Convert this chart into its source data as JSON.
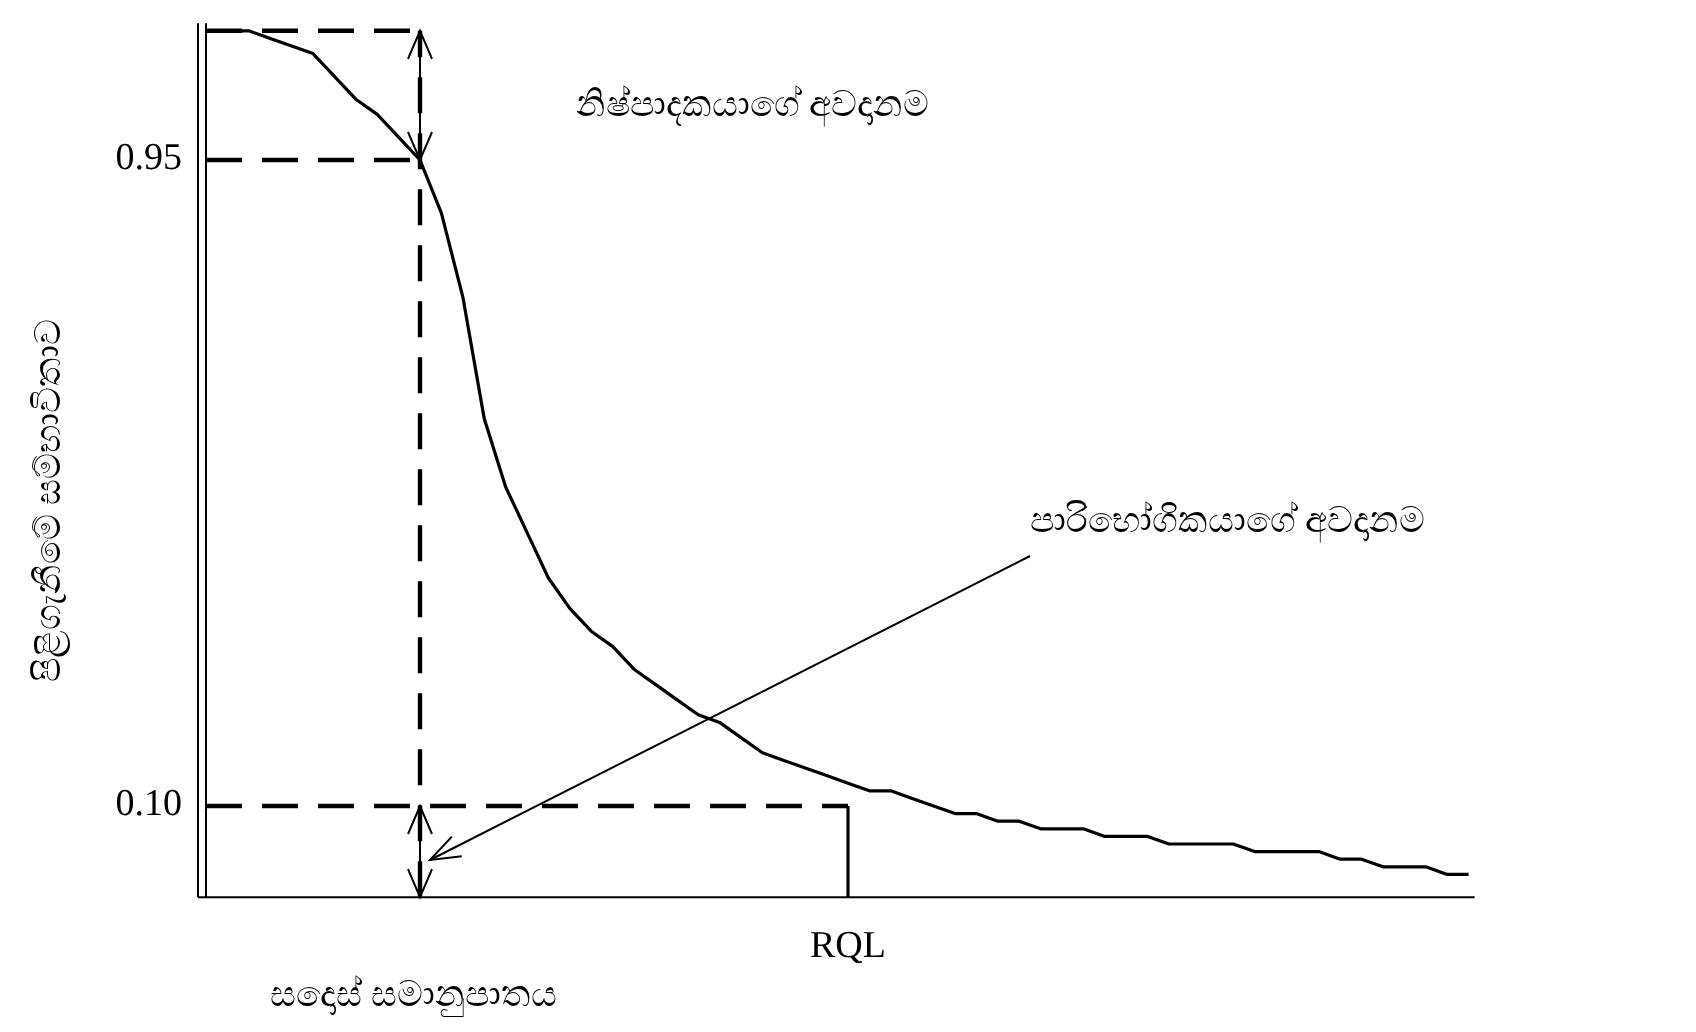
{
  "chart_data": {
    "type": "line",
    "xlabel": "සදොස් සමානුපාතය",
    "ylabel": "පිළිගැනීමේ සම්භාවිතාව",
    "annotations": [
      "නිෂ්පාදකයාගේ අවදානම",
      "පාරිභෝගිකයාගේ අවදානම"
    ],
    "categories": [
      null,
      null,
      null,
      null,
      null,
      null,
      null,
      null,
      null,
      null,
      null,
      null,
      null,
      null,
      null,
      null,
      null,
      null,
      null,
      null,
      null,
      null,
      null,
      null,
      null,
      null,
      null,
      null,
      null,
      null,
      "RQL",
      null,
      null,
      null,
      null,
      null,
      null,
      null,
      null,
      null,
      null,
      null,
      null,
      null,
      null,
      null,
      null,
      null,
      null,
      null,
      null,
      null,
      null,
      null,
      null,
      null,
      null,
      null,
      null,
      null
    ],
    "ylim": [
      -0.02,
      1.13
    ],
    "yticks": [
      {
        "value": 0.95,
        "label": "0.95"
      },
      {
        "value": 0.1,
        "label": "0.10"
      }
    ],
    "series": [
      {
        "color": "#000000",
        "line_style": "solid",
        "values": [
          1.12,
          1.12,
          1.12,
          1.11,
          1.1,
          1.09,
          1.06,
          1.03,
          1.01,
          0.98,
          0.95,
          0.88,
          0.77,
          0.61,
          0.52,
          0.46,
          0.4,
          0.36,
          0.33,
          0.31,
          0.28,
          0.26,
          0.24,
          0.22,
          0.21,
          0.19,
          0.17,
          0.16,
          0.15,
          0.14,
          0.13,
          0.12,
          0.12,
          0.11,
          0.1,
          0.09,
          0.09,
          0.08,
          0.08,
          0.07,
          0.07,
          0.07,
          0.06,
          0.06,
          0.06,
          0.05,
          0.05,
          0.05,
          0.05,
          0.04,
          0.04,
          0.04,
          0.04,
          0.03,
          0.03,
          0.02,
          0.02,
          0.02,
          0.01,
          0.01
        ]
      },
      {
        "color": "#000000",
        "line_style": "dashed",
        "values": [
          1.12,
          1.12,
          1.12,
          1.12,
          1.12,
          1.12,
          1.12,
          1.12,
          1.12,
          1.12,
          1.12,
          null,
          null,
          null,
          null,
          null,
          null,
          null,
          null,
          null,
          null,
          null,
          null,
          null,
          null,
          null,
          null,
          null,
          null,
          null,
          null,
          null,
          null,
          null,
          null,
          null,
          null,
          null,
          null,
          null,
          null,
          null,
          null,
          null,
          null,
          null,
          null,
          null,
          null,
          null,
          null,
          null,
          null,
          null,
          null,
          null,
          null,
          null,
          null,
          null
        ]
      },
      {
        "color": "#000000",
        "line_style": "dashed",
        "values": [
          0.95,
          0.95,
          0.95,
          0.95,
          0.95,
          0.95,
          0.95,
          0.95,
          0.95,
          0.95,
          0.95,
          null,
          null,
          null,
          null,
          null,
          null,
          null,
          null,
          null,
          null,
          null,
          null,
          null,
          null,
          null,
          null,
          null,
          null,
          null,
          null,
          null,
          null,
          null,
          null,
          null,
          null,
          null,
          null,
          null,
          null,
          null,
          null,
          null,
          null,
          null,
          null,
          null,
          null,
          null,
          null,
          null,
          null,
          null,
          null,
          null,
          null,
          null,
          null,
          null
        ]
      },
      {
        "color": "#000000",
        "line_style": "dashed",
        "values": [
          0.1,
          0.1,
          0.1,
          0.1,
          0.1,
          0.1,
          0.1,
          0.1,
          0.1,
          0.1,
          0.1,
          0.1,
          0.1,
          0.1,
          0.1,
          0.1,
          0.1,
          0.1,
          0.1,
          0.1,
          0.1,
          0.1,
          0.1,
          0.1,
          0.1,
          0.1,
          0.1,
          0.1,
          0.1,
          0.1,
          0.1,
          null,
          null,
          null,
          null,
          null,
          null,
          null,
          null,
          null,
          null,
          null,
          null,
          null,
          null,
          null,
          null,
          null,
          null,
          null,
          null,
          null,
          null,
          null,
          null,
          null,
          null,
          null,
          null,
          null
        ]
      },
      {
        "color": "#000000",
        "line_style": "solid",
        "x": [
          "RQL",
          "RQL"
        ],
        "values": [
          -0.02,
          0.1
        ]
      }
    ]
  }
}
